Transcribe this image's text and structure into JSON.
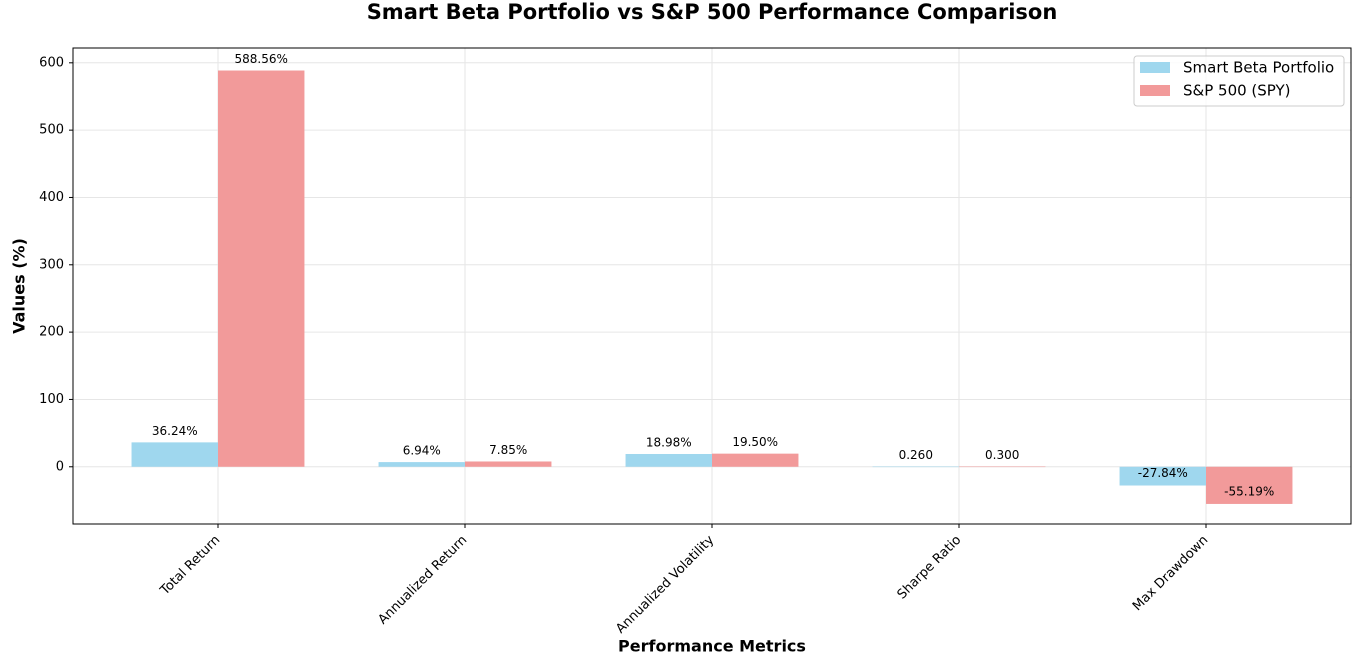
{
  "chart_data": {
    "type": "bar",
    "title": "Smart Beta Portfolio vs S&P 500 Performance Comparison",
    "xlabel": "Performance Metrics",
    "ylabel": "Values (%)",
    "categories": [
      "Total Return",
      "Annualized Return",
      "Annualized Volatility",
      "Sharpe Ratio",
      "Max Drawdown"
    ],
    "series": [
      {
        "name": "Smart Beta Portfolio",
        "color": "#9fd7ee",
        "values": [
          36.24,
          6.94,
          18.98,
          0.26,
          -27.84
        ],
        "value_labels": [
          "36.24%",
          "6.94%",
          "18.98%",
          "0.260",
          "-27.84%"
        ]
      },
      {
        "name": "S&P 500 (SPY)",
        "color": "#f29a9a",
        "values": [
          588.56,
          7.85,
          19.5,
          0.3,
          -55.19
        ],
        "value_labels": [
          "588.56%",
          "7.85%",
          "19.50%",
          "0.300",
          "-55.19%"
        ]
      }
    ],
    "ylim": [
      -85,
      622
    ],
    "yticks": [
      0,
      100,
      200,
      300,
      400,
      500,
      600
    ],
    "grid": true,
    "legend": "upper right"
  }
}
